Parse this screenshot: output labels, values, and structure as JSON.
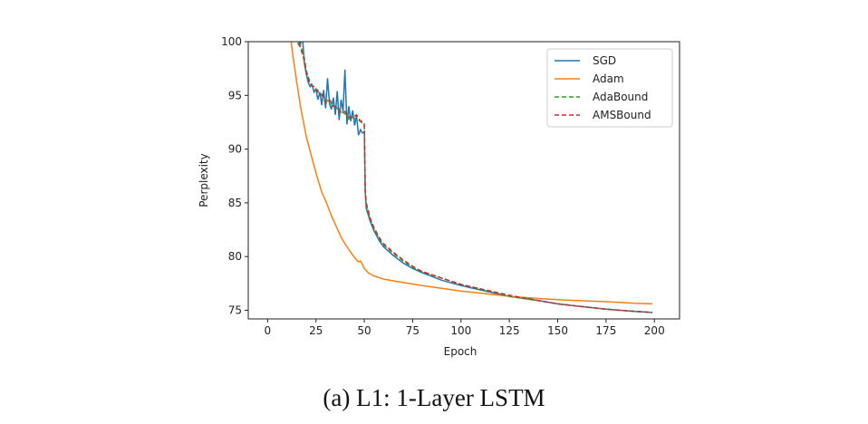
{
  "chart_data": {
    "type": "line",
    "title": "",
    "caption": "(a) L1: 1-Layer LSTM",
    "xlabel": "Epoch",
    "ylabel": "Perplexity",
    "xlim": [
      -10,
      213
    ],
    "ylim": [
      74.2,
      100
    ],
    "xticks": [
      0,
      25,
      50,
      75,
      100,
      125,
      150,
      175,
      200
    ],
    "yticks": [
      75,
      80,
      85,
      90,
      95,
      100
    ],
    "grid": false,
    "legend_position": "top-right",
    "series": [
      {
        "name": "SGD",
        "color": "#1f77b4",
        "dash": "solid",
        "points": [
          [
            12,
            101
          ],
          [
            15,
            100.5
          ],
          [
            17,
            99.8
          ],
          [
            18,
            100.5
          ],
          [
            19,
            98
          ],
          [
            20,
            97
          ],
          [
            21,
            96.2
          ],
          [
            22,
            95.8
          ],
          [
            23,
            96
          ],
          [
            24,
            95.3
          ],
          [
            25,
            95.6
          ],
          [
            26,
            94.6
          ],
          [
            27,
            95.3
          ],
          [
            28,
            94.1
          ],
          [
            29,
            95.5
          ],
          [
            30,
            93.8
          ],
          [
            31,
            96.6
          ],
          [
            32,
            94.2
          ],
          [
            33,
            93.7
          ],
          [
            34,
            94.8
          ],
          [
            35,
            93.2
          ],
          [
            36,
            95.4
          ],
          [
            37,
            92.7
          ],
          [
            38,
            94.6
          ],
          [
            39,
            93.5
          ],
          [
            40,
            97.4
          ],
          [
            41,
            92.3
          ],
          [
            42,
            94
          ],
          [
            43,
            92.6
          ],
          [
            44,
            93.6
          ],
          [
            45,
            92.2
          ],
          [
            46,
            93.1
          ],
          [
            47,
            91.3
          ],
          [
            48,
            91.8
          ],
          [
            49,
            91.5
          ],
          [
            50,
            91.6
          ],
          [
            50.5,
            86
          ],
          [
            51,
            84.5
          ],
          [
            53,
            83.3
          ],
          [
            55,
            82.4
          ],
          [
            58,
            81.4
          ],
          [
            60,
            80.9
          ],
          [
            65,
            80.1
          ],
          [
            70,
            79.4
          ],
          [
            75,
            78.9
          ],
          [
            80,
            78.5
          ],
          [
            90,
            77.8
          ],
          [
            100,
            77.3
          ],
          [
            110,
            76.9
          ],
          [
            125,
            76.3
          ],
          [
            140,
            75.9
          ],
          [
            150,
            75.6
          ],
          [
            160,
            75.4
          ],
          [
            175,
            75.1
          ],
          [
            190,
            74.9
          ],
          [
            199,
            74.8
          ]
        ]
      },
      {
        "name": "Adam",
        "color": "#ff7f0e",
        "dash": "solid",
        "points": [
          [
            12,
            100.2
          ],
          [
            13,
            98.8
          ],
          [
            15,
            96.3
          ],
          [
            17,
            94
          ],
          [
            20,
            91.2
          ],
          [
            22,
            89.8
          ],
          [
            25,
            87.8
          ],
          [
            28,
            86
          ],
          [
            30,
            85.2
          ],
          [
            33,
            83.8
          ],
          [
            35,
            83
          ],
          [
            38,
            81.8
          ],
          [
            40,
            81.2
          ],
          [
            43,
            80.4
          ],
          [
            45,
            79.9
          ],
          [
            47,
            79.5
          ],
          [
            48,
            79.6
          ],
          [
            49,
            79.3
          ],
          [
            50,
            78.9
          ],
          [
            52,
            78.5
          ],
          [
            55,
            78.2
          ],
          [
            60,
            77.9
          ],
          [
            70,
            77.6
          ],
          [
            80,
            77.3
          ],
          [
            100,
            76.8
          ],
          [
            110,
            76.6
          ],
          [
            125,
            76.3
          ],
          [
            140,
            76.1
          ],
          [
            150,
            76
          ],
          [
            160,
            75.9
          ],
          [
            175,
            75.8
          ],
          [
            190,
            75.65
          ],
          [
            199,
            75.6
          ]
        ]
      },
      {
        "name": "AdaBound",
        "color": "#2ca02c",
        "dash": "dashed",
        "points": [
          [
            13,
            100.4
          ],
          [
            15,
            100
          ],
          [
            17,
            99.7
          ],
          [
            19,
            98.5
          ],
          [
            20,
            97.3
          ],
          [
            22,
            96.2
          ],
          [
            24,
            95.6
          ],
          [
            26,
            95.5
          ],
          [
            28,
            95
          ],
          [
            30,
            94.6
          ],
          [
            32,
            94.4
          ],
          [
            34,
            94
          ],
          [
            36,
            93.8
          ],
          [
            38,
            93.5
          ],
          [
            40,
            93.3
          ],
          [
            42,
            92.8
          ],
          [
            44,
            93
          ],
          [
            46,
            92.7
          ],
          [
            48,
            92.6
          ],
          [
            49,
            92.4
          ],
          [
            50,
            92.2
          ],
          [
            50.5,
            86
          ],
          [
            51,
            84.8
          ],
          [
            53,
            83.5
          ],
          [
            55,
            82.6
          ],
          [
            58,
            81.6
          ],
          [
            60,
            81.1
          ],
          [
            65,
            80.3
          ],
          [
            70,
            79.6
          ],
          [
            75,
            79
          ],
          [
            80,
            78.6
          ],
          [
            90,
            78
          ],
          [
            100,
            77.4
          ],
          [
            110,
            77
          ],
          [
            125,
            76.3
          ],
          [
            140,
            75.9
          ],
          [
            150,
            75.6
          ],
          [
            160,
            75.4
          ],
          [
            175,
            75.1
          ],
          [
            190,
            74.9
          ],
          [
            199,
            74.8
          ]
        ]
      },
      {
        "name": "AMSBound",
        "color": "#d62728",
        "dash": "dashed",
        "points": [
          [
            13,
            100.3
          ],
          [
            15,
            100
          ],
          [
            17,
            99.5
          ],
          [
            19,
            98.2
          ],
          [
            20,
            97.2
          ],
          [
            22,
            96
          ],
          [
            24,
            95.8
          ],
          [
            26,
            95.3
          ],
          [
            28,
            95.1
          ],
          [
            30,
            94.3
          ],
          [
            32,
            94.6
          ],
          [
            34,
            94
          ],
          [
            36,
            93.9
          ],
          [
            38,
            93.4
          ],
          [
            40,
            93.5
          ],
          [
            42,
            93
          ],
          [
            44,
            92.9
          ],
          [
            46,
            93.2
          ],
          [
            48,
            92.6
          ],
          [
            49,
            92.6
          ],
          [
            50,
            92.3
          ],
          [
            50.5,
            86.2
          ],
          [
            51,
            85
          ],
          [
            53,
            83.6
          ],
          [
            55,
            82.7
          ],
          [
            58,
            81.7
          ],
          [
            60,
            81.2
          ],
          [
            65,
            80.4
          ],
          [
            70,
            79.7
          ],
          [
            75,
            79.1
          ],
          [
            80,
            78.6
          ],
          [
            90,
            78
          ],
          [
            100,
            77.4
          ],
          [
            110,
            77
          ],
          [
            125,
            76.4
          ],
          [
            140,
            75.9
          ],
          [
            150,
            75.6
          ],
          [
            160,
            75.4
          ],
          [
            175,
            75.1
          ],
          [
            190,
            74.9
          ],
          [
            199,
            74.8
          ]
        ]
      }
    ]
  }
}
